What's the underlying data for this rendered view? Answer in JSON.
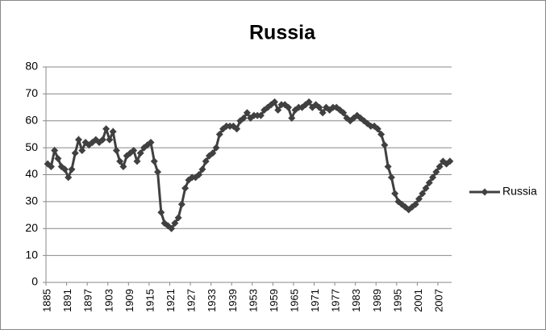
{
  "chart_data": {
    "type": "line",
    "title": "Russia",
    "categories": [
      "1885",
      null,
      null,
      null,
      null,
      null,
      "1891",
      null,
      null,
      null,
      null,
      null,
      "1897",
      null,
      null,
      null,
      null,
      null,
      "1903",
      null,
      null,
      null,
      null,
      null,
      "1909",
      null,
      null,
      null,
      null,
      null,
      "1915",
      null,
      null,
      null,
      null,
      null,
      "1921",
      null,
      null,
      null,
      null,
      null,
      "1927",
      null,
      null,
      null,
      null,
      null,
      "1933",
      null,
      null,
      null,
      null,
      null,
      "1939",
      null,
      null,
      null,
      null,
      null,
      "1953",
      null,
      null,
      null,
      null,
      null,
      "1959",
      null,
      null,
      null,
      null,
      null,
      "1965",
      null,
      null,
      null,
      null,
      null,
      "1971",
      null,
      null,
      null,
      null,
      null,
      "1977",
      null,
      null,
      null,
      null,
      null,
      "1983",
      null,
      null,
      null,
      null,
      null,
      "1989",
      null,
      null,
      null,
      null,
      null,
      "1995",
      null,
      null,
      null,
      null,
      null,
      "2001",
      null,
      null,
      null,
      null,
      null,
      "2007",
      null,
      null,
      null
    ],
    "series": [
      {
        "name": "Russia",
        "color": "#404040",
        "values": [
          44,
          43,
          49,
          46,
          43,
          42,
          39,
          42,
          48,
          53,
          49,
          52,
          51,
          52,
          53,
          52,
          53,
          57,
          53,
          56,
          49,
          45,
          43,
          47,
          48,
          49,
          45,
          48,
          50,
          51,
          52,
          45,
          41,
          26,
          22,
          21,
          20,
          22,
          24,
          29,
          35,
          38,
          39,
          39,
          40,
          42,
          45,
          47,
          48,
          50,
          55,
          57,
          58,
          58,
          58,
          57,
          60,
          61,
          63,
          61,
          62,
          62,
          62,
          64,
          65,
          66,
          67,
          64,
          66,
          66,
          65,
          61,
          64,
          65,
          65,
          66,
          67,
          65,
          66,
          65,
          63,
          65,
          64,
          65,
          65,
          64,
          63,
          61,
          60,
          61,
          62,
          61,
          60,
          59,
          58,
          58,
          57,
          55,
          51,
          43,
          39,
          33,
          30,
          29,
          28,
          27,
          28,
          29,
          31,
          33,
          35,
          37,
          39,
          41,
          43,
          45,
          44,
          45
        ]
      }
    ],
    "ylim": [
      0,
      80
    ],
    "yticks": [
      0,
      10,
      20,
      30,
      40,
      50,
      60,
      70,
      80
    ],
    "grid": true,
    "legend": "right"
  }
}
